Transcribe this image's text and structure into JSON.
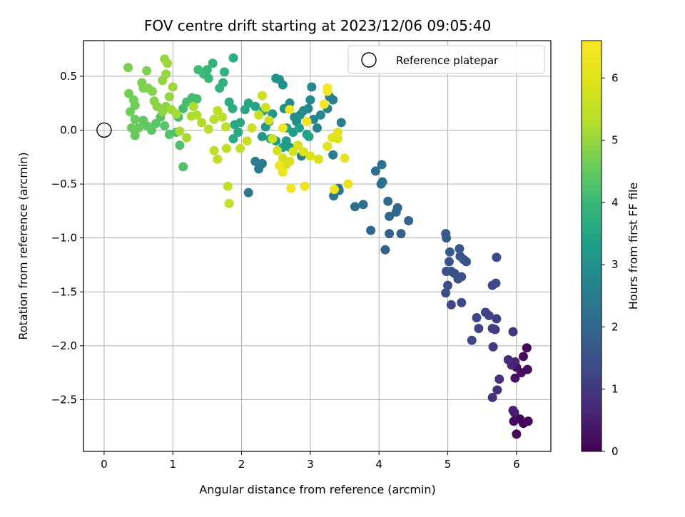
{
  "chart_data": {
    "type": "scatter",
    "title": "FOV centre drift starting at 2023/12/06 09:05:40",
    "xlabel": "Angular distance from reference (arcmin)",
    "ylabel": "Rotation from reference (arcmin)",
    "xlim": [
      -0.3,
      6.5
    ],
    "ylim": [
      -2.98,
      0.83
    ],
    "xticks": [
      0,
      1,
      2,
      3,
      4,
      5,
      6
    ],
    "yticks": [
      0.5,
      0.0,
      -0.5,
      -1.0,
      -1.5,
      -2.0,
      -2.5
    ],
    "xtick_labels": [
      "0",
      "1",
      "2",
      "3",
      "4",
      "5",
      "6"
    ],
    "ytick_labels": [
      "0.5",
      "0.0",
      "−0.5",
      "−1.0",
      "−1.5",
      "−2.0",
      "−2.5"
    ],
    "grid": true,
    "legend": {
      "placement": "top-right",
      "entries": [
        {
          "label": "Reference platepar",
          "marker": "open-circle"
        }
      ]
    },
    "reference_point": {
      "x": 0,
      "y": 0
    },
    "colorbar": {
      "label": "Hours from first FF file",
      "colormap": "viridis",
      "range": [
        0,
        6.6
      ],
      "ticks": [
        0,
        1,
        2,
        3,
        4,
        5,
        6
      ],
      "tick_labels": [
        "0",
        "1",
        "2",
        "3",
        "4",
        "5",
        "6"
      ]
    },
    "series": [
      {
        "columns": [
          "x",
          "y",
          "hours"
        ],
        "points": [
          [
            6.15,
            -2.02,
            0.1
          ],
          [
            6.0,
            -2.2,
            0.2
          ],
          [
            6.1,
            -2.1,
            0.2
          ],
          [
            6.16,
            -2.22,
            0.2
          ],
          [
            6.07,
            -2.25,
            0.25
          ],
          [
            5.98,
            -2.3,
            0.3
          ],
          [
            6.05,
            -2.68,
            0.1
          ],
          [
            6.1,
            -2.72,
            0.1
          ],
          [
            6.17,
            -2.7,
            0.15
          ],
          [
            6.0,
            -2.82,
            0.1
          ],
          [
            5.96,
            -2.7,
            0.2
          ],
          [
            5.97,
            -2.62,
            0.4
          ],
          [
            5.95,
            -2.6,
            0.5
          ],
          [
            5.98,
            -2.15,
            0.6
          ],
          [
            5.93,
            -2.18,
            0.6
          ],
          [
            5.88,
            -2.13,
            0.7
          ],
          [
            5.75,
            -2.31,
            0.8
          ],
          [
            5.72,
            -2.41,
            0.8
          ],
          [
            5.65,
            -2.48,
            0.9
          ],
          [
            5.95,
            -1.87,
            1.0
          ],
          [
            5.66,
            -2.01,
            1.0
          ],
          [
            5.65,
            -1.84,
            1.1
          ],
          [
            5.69,
            -1.85,
            1.1
          ],
          [
            5.71,
            -1.75,
            1.1
          ],
          [
            5.6,
            -1.72,
            1.2
          ],
          [
            5.55,
            -1.69,
            1.2
          ],
          [
            5.45,
            -1.84,
            1.2
          ],
          [
            5.42,
            -1.74,
            1.25
          ],
          [
            5.35,
            -1.95,
            1.3
          ],
          [
            5.2,
            -1.6,
            1.3
          ],
          [
            5.05,
            -1.62,
            1.3
          ],
          [
            5.65,
            -1.44,
            1.3
          ],
          [
            5.7,
            -1.42,
            1.35
          ],
          [
            5.71,
            -1.18,
            1.35
          ],
          [
            4.97,
            -1.51,
            1.4
          ],
          [
            5.0,
            -1.44,
            1.4
          ],
          [
            4.98,
            -1.31,
            1.4
          ],
          [
            5.05,
            -1.31,
            1.45
          ],
          [
            5.1,
            -1.33,
            1.45
          ],
          [
            5.15,
            -1.38,
            1.5
          ],
          [
            5.2,
            -1.36,
            1.5
          ],
          [
            5.27,
            -1.22,
            1.5
          ],
          [
            5.23,
            -1.2,
            1.55
          ],
          [
            5.18,
            -1.17,
            1.55
          ],
          [
            5.17,
            -1.1,
            1.6
          ],
          [
            5.02,
            -1.22,
            1.6
          ],
          [
            5.03,
            -1.13,
            1.65
          ],
          [
            4.98,
            -1.0,
            1.7
          ],
          [
            4.97,
            -0.96,
            1.7
          ],
          [
            4.32,
            -0.96,
            1.8
          ],
          [
            4.15,
            -0.96,
            1.8
          ],
          [
            4.09,
            -1.11,
            1.9
          ],
          [
            3.88,
            -0.93,
            1.9
          ],
          [
            4.43,
            -0.84,
            1.9
          ],
          [
            4.15,
            -0.8,
            2.0
          ],
          [
            4.25,
            -0.76,
            2.0
          ],
          [
            4.27,
            -0.72,
            2.0
          ],
          [
            4.13,
            -0.66,
            2.05
          ],
          [
            3.77,
            -0.69,
            2.1
          ],
          [
            3.65,
            -0.71,
            2.1
          ],
          [
            4.05,
            -0.48,
            2.15
          ],
          [
            4.03,
            -0.5,
            2.2
          ],
          [
            4.04,
            -0.32,
            2.2
          ],
          [
            3.95,
            -0.38,
            2.2
          ],
          [
            3.41,
            -0.54,
            2.3
          ],
          [
            3.34,
            -0.61,
            2.3
          ],
          [
            3.42,
            -0.56,
            2.35
          ],
          [
            2.1,
            -0.58,
            2.4
          ],
          [
            2.25,
            -0.36,
            2.45
          ],
          [
            2.2,
            -0.29,
            2.45
          ],
          [
            2.3,
            -0.31,
            2.5
          ],
          [
            3.33,
            -0.23,
            2.5
          ],
          [
            2.87,
            -0.24,
            2.6
          ],
          [
            3.45,
            0.07,
            2.6
          ],
          [
            3.33,
            0.28,
            2.6
          ],
          [
            3.28,
            0.31,
            2.65
          ],
          [
            3.25,
            0.2,
            2.7
          ],
          [
            3.1,
            0.02,
            2.7
          ],
          [
            3.05,
            0.1,
            2.7
          ],
          [
            3.15,
            0.14,
            2.75
          ],
          [
            3.02,
            0.4,
            2.8
          ],
          [
            3.0,
            0.28,
            2.8
          ],
          [
            2.97,
            0.2,
            2.8
          ],
          [
            2.9,
            0.18,
            2.85
          ],
          [
            2.85,
            0.14,
            2.9
          ],
          [
            2.8,
            0.08,
            2.9
          ],
          [
            2.77,
            0.12,
            2.9
          ],
          [
            2.7,
            0.25,
            2.95
          ],
          [
            2.62,
            0.2,
            3.0
          ],
          [
            2.6,
            0.42,
            3.0
          ],
          [
            2.55,
            0.47,
            3.05
          ],
          [
            2.5,
            0.48,
            3.05
          ],
          [
            2.45,
            0.15,
            3.1
          ],
          [
            2.4,
            0.08,
            3.1
          ],
          [
            2.35,
            0.03,
            3.15
          ],
          [
            2.3,
            -0.06,
            3.15
          ],
          [
            2.42,
            -0.08,
            3.2
          ],
          [
            2.5,
            -0.1,
            3.2
          ],
          [
            2.6,
            -0.16,
            3.25
          ],
          [
            2.65,
            -0.1,
            3.25
          ],
          [
            2.7,
            -0.16,
            3.3
          ],
          [
            2.75,
            -0.02,
            3.3
          ],
          [
            2.84,
            0.02,
            3.35
          ],
          [
            2.95,
            -0.04,
            3.35
          ],
          [
            2.98,
            -0.06,
            3.4
          ],
          [
            2.66,
            0.02,
            3.4
          ],
          [
            2.32,
            0.18,
            3.45
          ],
          [
            2.2,
            0.22,
            3.45
          ],
          [
            2.1,
            0.25,
            3.5
          ],
          [
            2.05,
            0.19,
            3.5
          ],
          [
            1.98,
            0.07,
            3.55
          ],
          [
            1.9,
            0.05,
            3.6
          ],
          [
            1.95,
            -0.02,
            3.6
          ],
          [
            1.88,
            -0.08,
            3.65
          ],
          [
            1.82,
            0.26,
            3.7
          ],
          [
            1.87,
            0.2,
            3.7
          ],
          [
            1.88,
            0.67,
            3.75
          ],
          [
            1.75,
            0.54,
            3.8
          ],
          [
            1.73,
            0.44,
            3.8
          ],
          [
            1.68,
            0.39,
            3.85
          ],
          [
            1.58,
            0.62,
            3.9
          ],
          [
            1.5,
            0.56,
            3.95
          ],
          [
            1.52,
            0.48,
            4.0
          ],
          [
            1.45,
            0.52,
            4.0
          ],
          [
            1.37,
            0.56,
            4.05
          ],
          [
            1.35,
            0.29,
            4.1
          ],
          [
            1.28,
            0.3,
            4.1
          ],
          [
            1.2,
            0.26,
            4.15
          ],
          [
            1.15,
            0.2,
            4.15
          ],
          [
            1.08,
            0.12,
            4.2
          ],
          [
            1.05,
            -0.02,
            4.2
          ],
          [
            1.1,
            -0.14,
            4.25
          ],
          [
            1.15,
            -0.34,
            4.3
          ],
          [
            0.95,
            -0.04,
            4.3
          ],
          [
            0.88,
            0.04,
            4.35
          ],
          [
            0.82,
            0.12,
            4.35
          ],
          [
            0.75,
            0.06,
            4.4
          ],
          [
            0.69,
            0.0,
            4.4
          ],
          [
            0.62,
            0.04,
            4.45
          ],
          [
            0.57,
            0.09,
            4.45
          ],
          [
            0.5,
            0.02,
            4.5
          ],
          [
            0.45,
            -0.05,
            4.5
          ],
          [
            0.4,
            0.02,
            4.55
          ],
          [
            0.45,
            0.1,
            4.55
          ],
          [
            0.38,
            0.17,
            4.6
          ],
          [
            0.45,
            0.23,
            4.6
          ],
          [
            0.43,
            0.28,
            4.65
          ],
          [
            0.36,
            0.34,
            4.65
          ],
          [
            0.35,
            0.58,
            4.7
          ],
          [
            0.55,
            0.44,
            4.7
          ],
          [
            0.62,
            0.55,
            4.75
          ],
          [
            0.57,
            0.39,
            4.75
          ],
          [
            0.64,
            0.39,
            4.8
          ],
          [
            0.7,
            0.36,
            4.8
          ],
          [
            0.73,
            0.27,
            4.85
          ],
          [
            0.77,
            0.22,
            4.85
          ],
          [
            0.85,
            0.17,
            4.9
          ],
          [
            0.9,
            0.22,
            4.9
          ],
          [
            0.95,
            0.31,
            4.95
          ],
          [
            0.85,
            0.46,
            4.95
          ],
          [
            0.9,
            0.52,
            5.0
          ],
          [
            0.92,
            0.62,
            5.0
          ],
          [
            0.88,
            0.66,
            5.05
          ],
          [
            1.0,
            0.4,
            5.05
          ],
          [
            0.98,
            0.19,
            5.1
          ],
          [
            1.05,
            0.15,
            5.1
          ],
          [
            1.1,
            -0.01,
            5.15
          ],
          [
            1.2,
            -0.07,
            5.15
          ],
          [
            1.27,
            0.13,
            5.2
          ],
          [
            1.3,
            0.22,
            5.2
          ],
          [
            1.35,
            0.14,
            5.25
          ],
          [
            1.42,
            0.07,
            5.25
          ],
          [
            1.52,
            0.01,
            5.3
          ],
          [
            1.6,
            0.1,
            5.3
          ],
          [
            1.65,
            0.18,
            5.35
          ],
          [
            1.72,
            0.12,
            5.35
          ],
          [
            1.77,
            0.03,
            5.4
          ],
          [
            1.6,
            -0.19,
            5.4
          ],
          [
            1.65,
            -0.27,
            5.45
          ],
          [
            1.78,
            -0.17,
            5.45
          ],
          [
            1.8,
            -0.52,
            5.5
          ],
          [
            1.82,
            -0.68,
            5.5
          ],
          [
            1.98,
            -0.17,
            5.55
          ],
          [
            2.08,
            -0.1,
            5.55
          ],
          [
            2.15,
            0.02,
            5.6
          ],
          [
            2.25,
            0.14,
            5.6
          ],
          [
            2.3,
            0.32,
            5.65
          ],
          [
            2.35,
            0.21,
            5.65
          ],
          [
            2.4,
            0.09,
            5.7
          ],
          [
            2.45,
            -0.08,
            5.7
          ],
          [
            2.52,
            -0.19,
            5.75
          ],
          [
            2.6,
            -0.26,
            5.75
          ],
          [
            2.65,
            -0.32,
            5.8
          ],
          [
            2.75,
            -0.2,
            5.8
          ],
          [
            2.7,
            -0.29,
            5.85
          ],
          [
            2.82,
            -0.14,
            5.85
          ],
          [
            2.9,
            -0.2,
            5.9
          ],
          [
            3.0,
            -0.24,
            5.9
          ],
          [
            3.12,
            -0.27,
            5.95
          ],
          [
            3.25,
            -0.15,
            6.0
          ],
          [
            3.4,
            -0.02,
            6.0
          ],
          [
            3.32,
            -0.07,
            6.05
          ],
          [
            3.4,
            -0.08,
            6.05
          ],
          [
            3.5,
            -0.26,
            6.1
          ],
          [
            3.55,
            -0.5,
            6.15
          ],
          [
            3.35,
            -0.55,
            6.2
          ],
          [
            2.92,
            -0.52,
            6.25
          ],
          [
            2.72,
            -0.54,
            6.3
          ],
          [
            2.6,
            -0.39,
            6.3
          ],
          [
            2.55,
            -0.33,
            6.35
          ],
          [
            2.6,
            0.02,
            6.35
          ],
          [
            2.7,
            0.19,
            6.4
          ],
          [
            2.95,
            0.08,
            6.4
          ],
          [
            3.2,
            0.24,
            6.45
          ],
          [
            3.25,
            0.36,
            6.5
          ],
          [
            3.25,
            0.39,
            6.5
          ]
        ]
      }
    ]
  }
}
